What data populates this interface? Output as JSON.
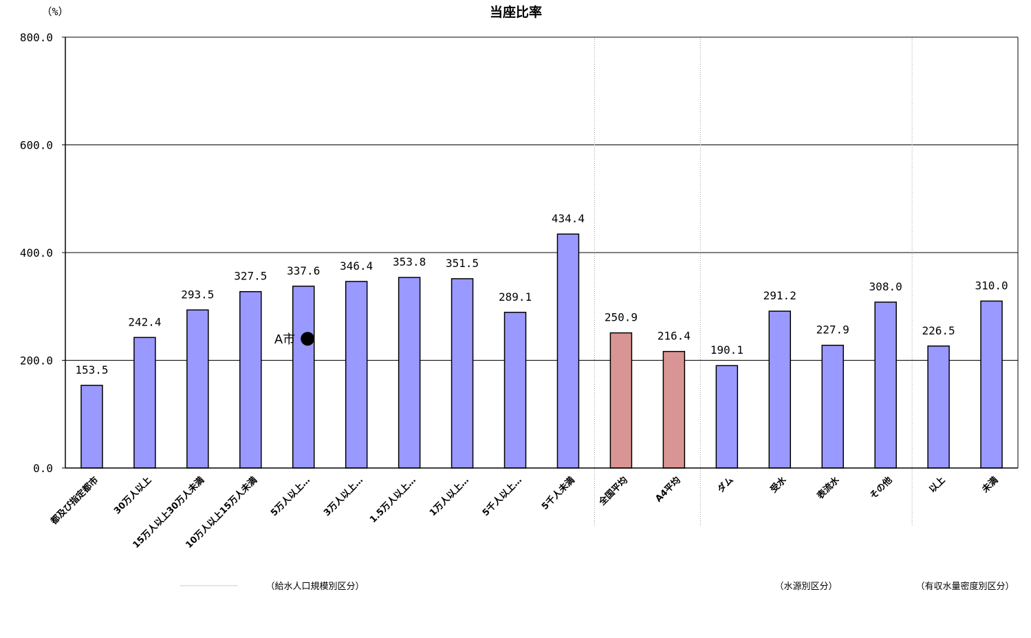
{
  "chart_data": {
    "type": "bar",
    "title": "当座比率",
    "unit": "（%）",
    "ylim": [
      0,
      800
    ],
    "yticks": [
      "0.0",
      "200.0",
      "400.0",
      "600.0",
      "800.0"
    ],
    "grid": true,
    "categories": [
      "都及び指定都市",
      "30万人以上",
      "15万人以上30万人未満",
      "10万人以上15万人未満",
      "5万人以上…",
      "3万人以上…",
      "1.5万人以上…",
      "1万人以上…",
      "5千人以上…",
      "5千人未満",
      "全国平均",
      "A4平均",
      "ダム",
      "受水",
      "表流水",
      "その他",
      "以上",
      "未満"
    ],
    "values": [
      153.5,
      242.4,
      293.5,
      327.5,
      337.6,
      346.4,
      353.8,
      351.5,
      289.1,
      434.4,
      250.9,
      216.4,
      190.1,
      291.2,
      227.9,
      308.0,
      226.5,
      310.0
    ],
    "value_labels": [
      "153.5",
      "242.4",
      "293.5",
      "327.5",
      "337.6",
      "346.4",
      "353.8",
      "351.5",
      "289.1",
      "434.4",
      "250.9",
      "216.4",
      "190.1",
      "291.2",
      "227.9",
      "308.0",
      "226.5",
      "310.0"
    ],
    "bar_colors": [
      "#9999ff",
      "#9999ff",
      "#9999ff",
      "#9999ff",
      "#9999ff",
      "#9999ff",
      "#9999ff",
      "#9999ff",
      "#9999ff",
      "#9999ff",
      "#d99594",
      "#d99594",
      "#9999ff",
      "#9999ff",
      "#9999ff",
      "#9999ff",
      "#9999ff",
      "#9999ff"
    ],
    "group_labels": [
      "（給水人口規模別区分）",
      "（水源別区分）",
      "（有収水量密度別区分）"
    ],
    "marker": {
      "label": "A市",
      "value": 240.0,
      "category_index": 4
    }
  }
}
